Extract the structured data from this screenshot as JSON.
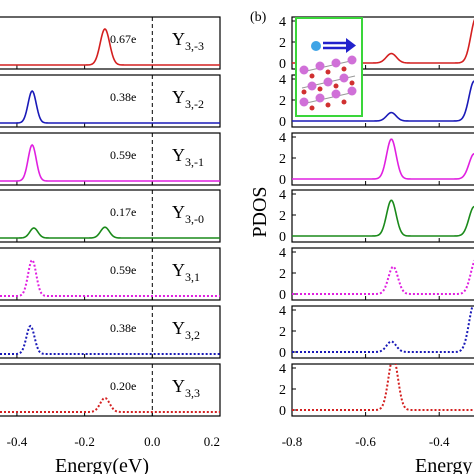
{
  "figure": {
    "panel_b_label": "(b)",
    "left_xlabel": "Energy(eV)",
    "right_xlabel": "Energy",
    "right_ylabel": "PDOS"
  },
  "chart_data": [
    {
      "type": "line",
      "panel": "a",
      "xlabel": "Energy(eV)",
      "xlim": [
        -0.45,
        0.2
      ],
      "x_ticks": [
        "-0.4",
        "-0.2",
        "0.0",
        "0.2"
      ],
      "x_tick_values": [
        -0.4,
        -0.2,
        0.0,
        0.2
      ],
      "fermi_level_line": 0.0,
      "rows": [
        {
          "label": "Y",
          "sub": "3,-3",
          "charge": "0.67e",
          "color": "#d42020",
          "style": "solid",
          "peaks": [
            {
              "center": -0.14,
              "height": 0.9,
              "width": 0.014
            }
          ]
        },
        {
          "label": "Y",
          "sub": "3,-2",
          "charge": "0.38e",
          "color": "#1a1ab8",
          "style": "solid",
          "peaks": [
            {
              "center": -0.355,
              "height": 0.8,
              "width": 0.012
            }
          ]
        },
        {
          "label": "Y",
          "sub": "3,-1",
          "charge": "0.59e",
          "color": "#e020e0",
          "style": "solid",
          "peaks": [
            {
              "center": -0.355,
              "height": 0.9,
              "width": 0.012
            }
          ]
        },
        {
          "label": "Y",
          "sub": "3,-0",
          "charge": "0.17e",
          "color": "#1a8a1a",
          "style": "solid",
          "peaks": [
            {
              "center": -0.35,
              "height": 0.25,
              "width": 0.012
            },
            {
              "center": -0.14,
              "height": 0.27,
              "width": 0.013
            }
          ]
        },
        {
          "label": "Y",
          "sub": "3,1",
          "charge": "0.59e",
          "color": "#e020e0",
          "style": "dotted",
          "peaks": [
            {
              "center": -0.355,
              "height": 0.9,
              "width": 0.012
            }
          ]
        },
        {
          "label": "Y",
          "sub": "3,2",
          "charge": "0.38e",
          "color": "#1a1ab8",
          "style": "dotted",
          "peaks": [
            {
              "center": -0.36,
              "height": 0.7,
              "width": 0.012
            }
          ]
        },
        {
          "label": "Y",
          "sub": "3,3",
          "charge": "0.20e",
          "color": "#d42020",
          "style": "dotted",
          "peaks": [
            {
              "center": -0.14,
              "height": 0.35,
              "width": 0.014
            }
          ]
        }
      ]
    },
    {
      "type": "line",
      "panel": "b",
      "xlabel": "Energy",
      "ylabel": "PDOS",
      "xlim": [
        -0.8,
        -0.3
      ],
      "ylim": [
        0,
        4
      ],
      "x_ticks": [
        "-0.8",
        "-0.6",
        "-0.4"
      ],
      "x_tick_values": [
        -0.8,
        -0.6,
        -0.4
      ],
      "y_ticks": [
        "0",
        "2",
        "4"
      ],
      "rows": [
        {
          "color": "#d42020",
          "style": "solid",
          "peaks": [
            {
              "center": -0.53,
              "height": 0.9,
              "width": 0.014
            },
            {
              "center": -0.3,
              "height": 4.3,
              "width": 0.014
            }
          ]
        },
        {
          "color": "#1a1ab8",
          "style": "solid",
          "peaks": [
            {
              "center": -0.53,
              "height": 0.8,
              "width": 0.013
            },
            {
              "center": -0.305,
              "height": 3.8,
              "width": 0.014
            }
          ]
        },
        {
          "color": "#e020e0",
          "style": "solid",
          "peaks": [
            {
              "center": -0.53,
              "height": 3.8,
              "width": 0.013
            },
            {
              "center": -0.305,
              "height": 2.4,
              "width": 0.014
            }
          ]
        },
        {
          "color": "#1a8a1a",
          "style": "solid",
          "peaks": [
            {
              "center": -0.53,
              "height": 3.4,
              "width": 0.013
            },
            {
              "center": -0.305,
              "height": 2.8,
              "width": 0.014
            }
          ]
        },
        {
          "color": "#e020e0",
          "style": "dotted",
          "peaks": [
            {
              "center": -0.525,
              "height": 2.6,
              "width": 0.013
            },
            {
              "center": -0.3,
              "height": 3.3,
              "width": 0.014
            }
          ]
        },
        {
          "color": "#1a1ab8",
          "style": "dotted",
          "peaks": [
            {
              "center": -0.53,
              "height": 1.0,
              "width": 0.013
            },
            {
              "center": -0.305,
              "height": 4.6,
              "width": 0.014
            }
          ]
        },
        {
          "color": "#d42020",
          "style": "dotted",
          "peaks": [
            {
              "center": -0.525,
              "height": 5.0,
              "width": 0.013
            }
          ]
        }
      ]
    }
  ]
}
